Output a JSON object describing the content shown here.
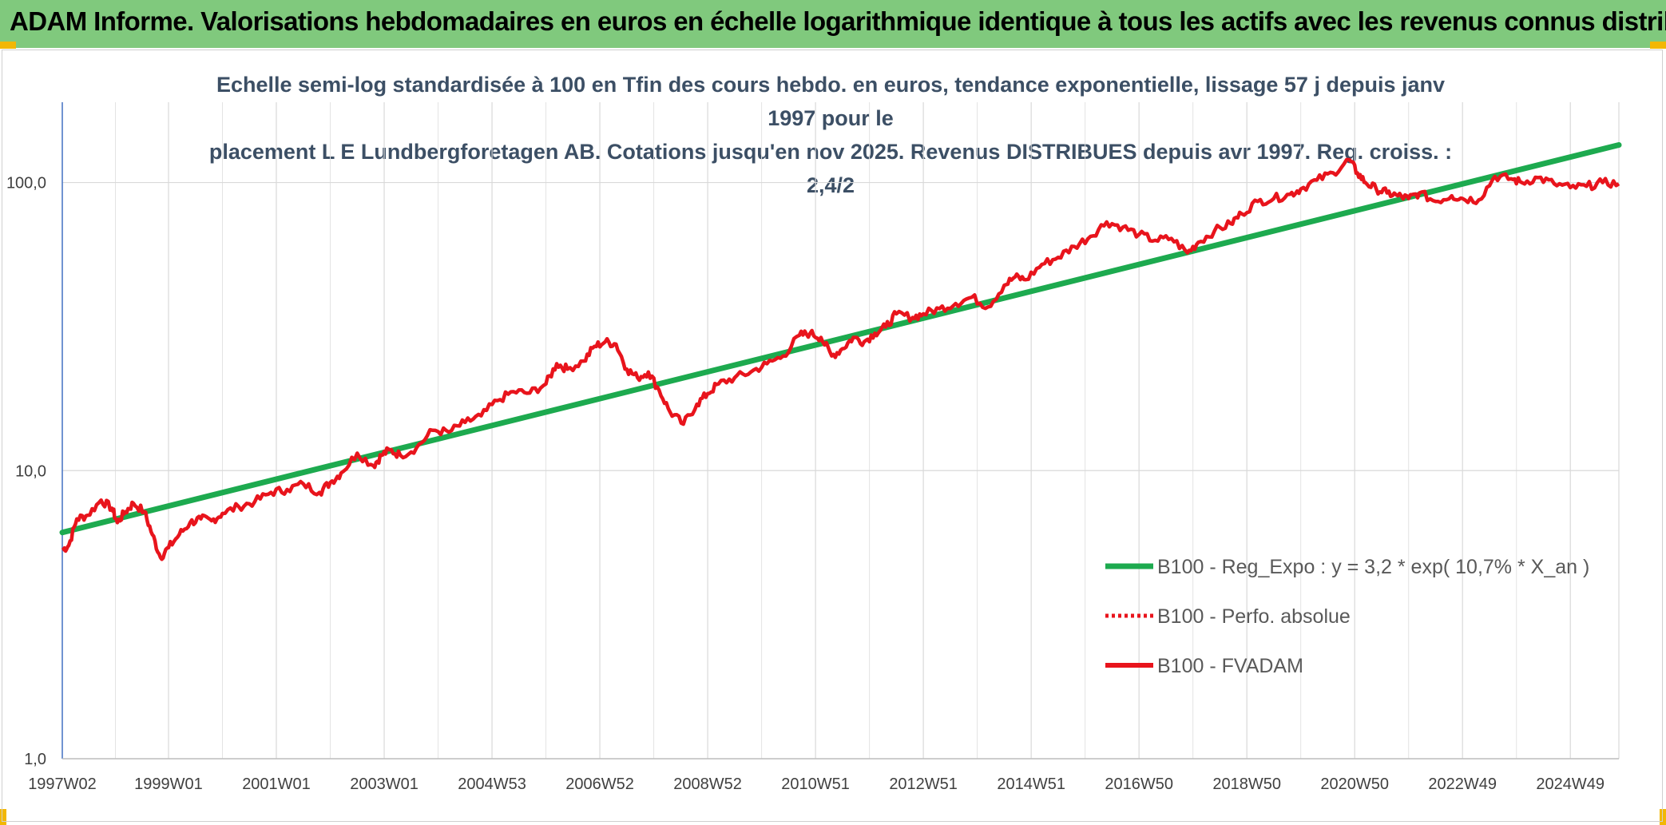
{
  "banner": {
    "title": "ADAM Informe. Valorisations hebdomadaires en euros en échelle logarithmique identique à tous les actifs avec les revenus connus distribués"
  },
  "chart_data": {
    "type": "line",
    "title_line1": "Echelle semi-log standardisée à 100 en Tfin des cours hebdo. en euros, tendance exponentielle, lissage 57 j depuis janv 1997 pour le",
    "title_line2": "placement L E Lundbergforetagen AB. Cotations jusqu'en nov 2025. Revenus DISTRIBUES depuis avr 1997. Reg. croiss. : 2,4/2",
    "y_scale": "log",
    "ylim": [
      1,
      190
    ],
    "xlim": [
      1997.03,
      2025.9
    ],
    "y_ticks": [
      {
        "value": 1,
        "label": "1,0"
      },
      {
        "value": 10,
        "label": "10,0"
      },
      {
        "value": 100,
        "label": "100,0"
      }
    ],
    "x_ticks": [
      {
        "x": 1997.03,
        "label": "1997W02"
      },
      {
        "x": 1999.0,
        "label": "1999W01"
      },
      {
        "x": 2001.0,
        "label": "2001W01"
      },
      {
        "x": 2003.0,
        "label": "2003W01"
      },
      {
        "x": 2005.0,
        "label": "2004W53"
      },
      {
        "x": 2007.0,
        "label": "2006W52"
      },
      {
        "x": 2009.0,
        "label": "2008W52"
      },
      {
        "x": 2011.0,
        "label": "2010W51"
      },
      {
        "x": 2013.0,
        "label": "2012W51"
      },
      {
        "x": 2015.0,
        "label": "2014W51"
      },
      {
        "x": 2017.0,
        "label": "2016W50"
      },
      {
        "x": 2019.0,
        "label": "2018W50"
      },
      {
        "x": 2021.0,
        "label": "2020W50"
      },
      {
        "x": 2023.0,
        "label": "2022W49"
      },
      {
        "x": 2025.0,
        "label": "2024W49"
      }
    ],
    "grid": true,
    "legend_position": "bottom-right",
    "series": [
      {
        "name": "B100 - Reg_Expo : y = 3,2 * exp( 10,7% *  X_an )",
        "color": "#1daa4f",
        "style": "solid",
        "x": [
          1997.03,
          2025.9
        ],
        "y": [
          6.1,
          135
        ]
      },
      {
        "name": "B100 - Perfo. absolue",
        "color": "#e8141c",
        "style": "dotted",
        "x": [],
        "y": []
      },
      {
        "name": "B100 - FVADAM",
        "color": "#e8141c",
        "style": "solid",
        "x": [
          1997.03,
          1997.15,
          1997.3,
          1997.5,
          1997.75,
          1997.95,
          1998.05,
          1998.2,
          1998.35,
          1998.55,
          1998.7,
          1998.85,
          1999.0,
          1999.2,
          1999.4,
          1999.6,
          1999.8,
          2000.0,
          2000.3,
          2000.6,
          2000.9,
          2001.2,
          2001.5,
          2001.8,
          2002.0,
          2002.2,
          2002.5,
          2002.8,
          2002.95,
          2003.1,
          2003.3,
          2003.6,
          2003.9,
          2004.2,
          2004.5,
          2004.8,
          2005.1,
          2005.4,
          2005.7,
          2006.0,
          2006.2,
          2006.4,
          2006.7,
          2006.9,
          2007.1,
          2007.3,
          2007.5,
          2007.7,
          2007.9,
          2008.1,
          2008.3,
          2008.55,
          2008.8,
          2009.0,
          2009.2,
          2009.5,
          2009.8,
          2010.1,
          2010.4,
          2010.7,
          2010.9,
          2011.1,
          2011.3,
          2011.5,
          2011.7,
          2011.9,
          2012.1,
          2012.3,
          2012.5,
          2012.8,
          2013.0,
          2013.3,
          2013.6,
          2013.9,
          2014.2,
          2014.5,
          2014.7,
          2014.9,
          2015.2,
          2015.5,
          2015.8,
          2016.1,
          2016.4,
          2016.7,
          2017.0,
          2017.3,
          2017.6,
          2017.9,
          2018.1,
          2018.4,
          2018.7,
          2018.9,
          2019.2,
          2019.5,
          2019.8,
          2020.0,
          2020.3,
          2020.6,
          2020.9,
          2021.05,
          2021.2,
          2021.4,
          2021.6,
          2021.8,
          2022.0,
          2022.2,
          2022.5,
          2022.8,
          2023.0,
          2023.3,
          2023.6,
          2023.9,
          2024.1,
          2024.4,
          2024.7,
          2025.0,
          2025.3,
          2025.6,
          2025.9
        ],
        "y": [
          5.3,
          5.5,
          6.8,
          7.0,
          7.9,
          7.4,
          6.6,
          7.2,
          7.7,
          7.2,
          6.0,
          5.0,
          5.4,
          6.0,
          6.6,
          6.8,
          6.7,
          7.1,
          7.5,
          7.8,
          8.4,
          8.6,
          9.0,
          8.4,
          9.1,
          9.8,
          11.5,
          10.4,
          11.3,
          11.8,
          11.3,
          12.0,
          13.8,
          13.6,
          14.7,
          15.5,
          17.5,
          18.8,
          18.6,
          20.0,
          23.5,
          22.5,
          24.0,
          27.0,
          28.0,
          27.5,
          22.5,
          21.0,
          22.0,
          19.0,
          16.0,
          14.5,
          17.0,
          18.5,
          20.0,
          21.0,
          22.0,
          23.5,
          25.0,
          29.5,
          30.0,
          29.0,
          25.0,
          26.5,
          29.0,
          28.0,
          30.0,
          31.5,
          35.0,
          34.0,
          35.0,
          36.5,
          38.0,
          40.0,
          37.0,
          44.0,
          47.0,
          46.0,
          52.0,
          55.0,
          60.0,
          65.0,
          73.0,
          70.0,
          66.0,
          63.0,
          64.0,
          57.0,
          62.0,
          68.0,
          72.0,
          78.0,
          86.0,
          88.0,
          91.0,
          95.0,
          102.0,
          108.0,
          120.0,
          108.0,
          100.0,
          95.0,
          92.0,
          90.0,
          88.0,
          92.0,
          86.0,
          90.0,
          88.0,
          87.0,
          105.0,
          103.0,
          100.0,
          104.0,
          99.0,
          96.0,
          97.0,
          100.0,
          99.0
        ]
      }
    ]
  }
}
